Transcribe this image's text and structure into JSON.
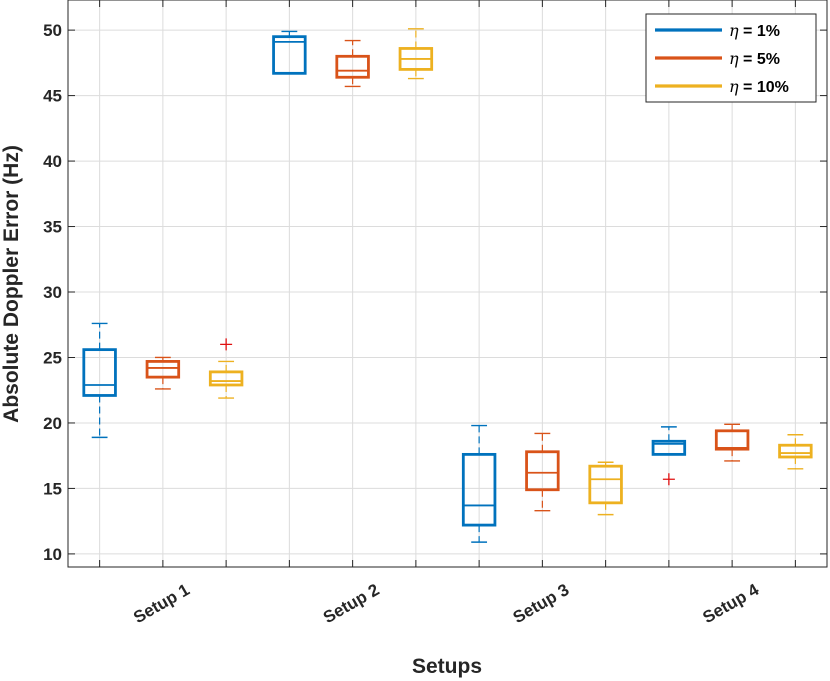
{
  "chart_data": {
    "type": "box",
    "title": "",
    "xlabel": "Setups",
    "ylabel": "Absolute Doppler Error (Hz)",
    "ylim": [
      9,
      52.3
    ],
    "yticks": [
      10,
      15,
      20,
      25,
      30,
      35,
      40,
      45,
      50
    ],
    "categories": [
      "Setup 1",
      "Setup 2",
      "Setup 3",
      "Setup 4"
    ],
    "legend_position": "top-right",
    "series": [
      {
        "name": "η = 1%",
        "legend_symbol": "η",
        "legend_value": "= 1%",
        "color": "#0072BD",
        "boxes": [
          {
            "category": "Setup 1",
            "whisker_low": 18.9,
            "q1": 22.1,
            "median": 22.9,
            "q3": 25.6,
            "whisker_high": 27.6,
            "outliers": []
          },
          {
            "category": "Setup 2",
            "whisker_low": 46.7,
            "q1": 46.7,
            "median": 49.1,
            "q3": 49.5,
            "whisker_high": 49.9,
            "outliers": []
          },
          {
            "category": "Setup 3",
            "whisker_low": 10.9,
            "q1": 12.2,
            "median": 13.7,
            "q3": 17.6,
            "whisker_high": 19.8,
            "outliers": []
          },
          {
            "category": "Setup 4",
            "whisker_low": 17.6,
            "q1": 17.6,
            "median": 18.4,
            "q3": 18.6,
            "whisker_high": 19.7,
            "outliers": [
              15.7
            ]
          }
        ]
      },
      {
        "name": "η = 5%",
        "legend_symbol": "η",
        "legend_value": "= 5%",
        "color": "#D95319",
        "boxes": [
          {
            "category": "Setup 1",
            "whisker_low": 22.6,
            "q1": 23.5,
            "median": 24.2,
            "q3": 24.7,
            "whisker_high": 25.0,
            "outliers": []
          },
          {
            "category": "Setup 2",
            "whisker_low": 45.7,
            "q1": 46.4,
            "median": 46.9,
            "q3": 48.0,
            "whisker_high": 49.2,
            "outliers": []
          },
          {
            "category": "Setup 3",
            "whisker_low": 13.3,
            "q1": 14.9,
            "median": 16.2,
            "q3": 17.8,
            "whisker_high": 19.2,
            "outliers": []
          },
          {
            "category": "Setup 4",
            "whisker_low": 17.1,
            "q1": 18.0,
            "median": 18.1,
            "q3": 19.4,
            "whisker_high": 19.9,
            "outliers": []
          }
        ]
      },
      {
        "name": "η = 10%",
        "legend_symbol": "η",
        "legend_value": "= 10%",
        "color": "#EDB120",
        "boxes": [
          {
            "category": "Setup 1",
            "whisker_low": 21.9,
            "q1": 22.9,
            "median": 23.2,
            "q3": 23.9,
            "whisker_high": 24.7,
            "outliers": [
              26.0
            ]
          },
          {
            "category": "Setup 2",
            "whisker_low": 46.3,
            "q1": 47.0,
            "median": 47.8,
            "q3": 48.6,
            "whisker_high": 50.1,
            "outliers": []
          },
          {
            "category": "Setup 3",
            "whisker_low": 13.0,
            "q1": 13.9,
            "median": 15.7,
            "q3": 16.7,
            "whisker_high": 17.0,
            "outliers": []
          },
          {
            "category": "Setup 4",
            "whisker_low": 16.5,
            "q1": 17.4,
            "median": 17.7,
            "q3": 18.3,
            "whisker_high": 19.1,
            "outliers": []
          }
        ]
      }
    ]
  }
}
